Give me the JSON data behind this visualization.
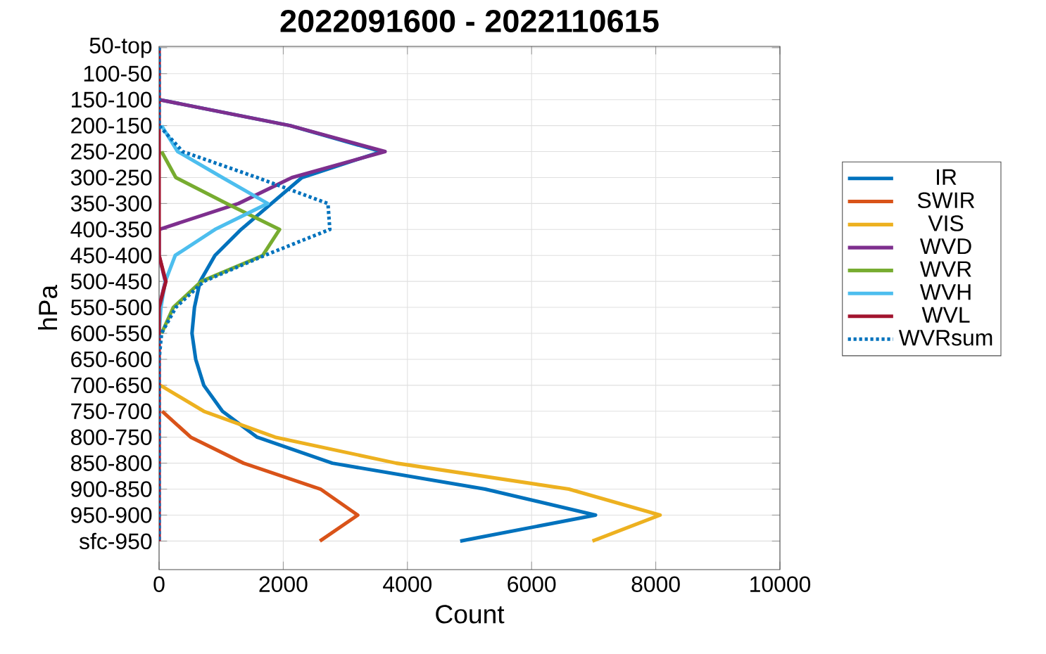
{
  "chart_data": {
    "type": "line",
    "title": "2022091600 - 2022110615",
    "xlabel": "Count",
    "ylabel": "hPa",
    "orientation": "horizontal",
    "categories": [
      "50-top",
      "100-50",
      "150-100",
      "200-150",
      "250-200",
      "300-250",
      "350-300",
      "400-350",
      "450-400",
      "500-450",
      "550-500",
      "600-550",
      "650-600",
      "700-650",
      "750-700",
      "800-750",
      "850-800",
      "900-850",
      "950-900",
      "sfc-950"
    ],
    "xlim": [
      0,
      10000
    ],
    "xticks": [
      0,
      2000,
      4000,
      6000,
      8000,
      10000
    ],
    "grid": true,
    "legend": "right",
    "line_style": "solid",
    "series": [
      {
        "name": "IR",
        "color": "#0072bd",
        "values": [
          null,
          null,
          0,
          2110,
          3580,
          2300,
          1810,
          1320,
          900,
          660,
          570,
          530,
          590,
          720,
          1020,
          1580,
          2790,
          5250,
          7030,
          4850
        ]
      },
      {
        "name": "SWIR",
        "color": "#d95319",
        "values": [
          null,
          null,
          null,
          null,
          null,
          null,
          null,
          null,
          null,
          null,
          null,
          null,
          null,
          null,
          50,
          510,
          1360,
          2600,
          3200,
          2590
        ]
      },
      {
        "name": "VIS",
        "color": "#edb120",
        "values": [
          null,
          null,
          null,
          null,
          null,
          null,
          null,
          null,
          null,
          null,
          null,
          null,
          null,
          20,
          720,
          1870,
          3820,
          6600,
          8070,
          6980
        ]
      },
      {
        "name": "WVD",
        "color": "#7e2f8e",
        "values": [
          null,
          null,
          0,
          2110,
          3640,
          2140,
          1280,
          0,
          0,
          100,
          0,
          null,
          null,
          null,
          null,
          null,
          null,
          null,
          null,
          null
        ]
      },
      {
        "name": "WVR",
        "color": "#77ac30",
        "values": [
          null,
          null,
          null,
          null,
          40,
          270,
          1090,
          1940,
          1670,
          680,
          230,
          40,
          null,
          null,
          null,
          null,
          null,
          null,
          null,
          null
        ]
      },
      {
        "name": "WVH",
        "color": "#4dbeee",
        "values": [
          null,
          null,
          null,
          40,
          300,
          1020,
          1750,
          900,
          260,
          100,
          30,
          0,
          null,
          null,
          null,
          null,
          null,
          null,
          null,
          null
        ]
      },
      {
        "name": "WVL",
        "color": "#a2142f",
        "values": [
          0,
          0,
          0,
          0,
          0,
          0,
          0,
          0,
          0,
          110,
          0,
          0,
          0,
          0,
          0,
          0,
          0,
          0,
          0,
          0
        ]
      },
      {
        "name": "WVRsum",
        "color": "#0072bd",
        "line_style": "dotted",
        "values": [
          0,
          0,
          0,
          0,
          380,
          1580,
          2720,
          2750,
          1700,
          720,
          270,
          40,
          0,
          0,
          0,
          0,
          0,
          0,
          0,
          0
        ]
      }
    ]
  }
}
